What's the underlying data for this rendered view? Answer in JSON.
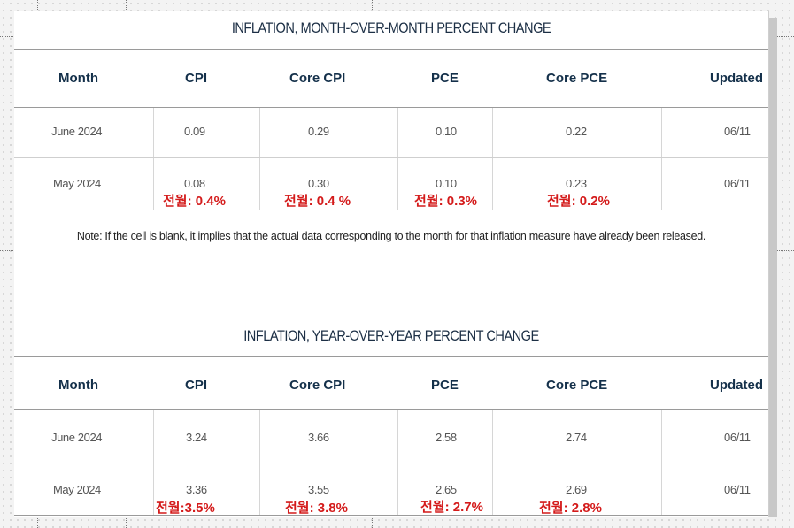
{
  "mom": {
    "title": "INFLATION, MONTH-OVER-MONTH PERCENT CHANGE",
    "headers": [
      "Month",
      "CPI",
      "Core CPI",
      "PCE",
      "Core PCE",
      "Updated"
    ],
    "rows": [
      {
        "month": "June 2024",
        "cpi": "0.09",
        "core_cpi": "0.29",
        "pce": "0.10",
        "core_pce": "0.22",
        "updated": "06/11"
      },
      {
        "month": "May 2024",
        "cpi": "0.08",
        "core_cpi": "0.30",
        "pce": "0.10",
        "core_pce": "0.23",
        "updated": "06/11"
      }
    ],
    "annotations": {
      "cpi": "전월: 0.4%",
      "core_cpi": "전월: 0.4 %",
      "pce": "전월: 0.3%",
      "core_pce": "전월: 0.2%"
    }
  },
  "note": "Note: If the cell is blank, it implies that the actual data corresponding to the month for that inflation measure have already been released.",
  "yoy": {
    "title": "INFLATION, YEAR-OVER-YEAR PERCENT CHANGE",
    "headers": [
      "Month",
      "CPI",
      "Core CPI",
      "PCE",
      "Core PCE",
      "Updated"
    ],
    "rows": [
      {
        "month": "June 2024",
        "cpi": "3.24",
        "core_cpi": "3.66",
        "pce": "2.58",
        "core_pce": "2.74",
        "updated": "06/11"
      },
      {
        "month": "May 2024",
        "cpi": "3.36",
        "core_cpi": "3.55",
        "pce": "2.65",
        "core_pce": "2.69",
        "updated": "06/11"
      }
    ],
    "annotations": {
      "cpi": "전월:3.5%",
      "core_cpi": "전월: 3.8%",
      "pce": "전월: 2.7%",
      "core_pce": "전월: 2.8%"
    }
  },
  "colors": {
    "header_text": "#14304a",
    "annotation": "#d41b1b",
    "cell_text": "#555555"
  }
}
